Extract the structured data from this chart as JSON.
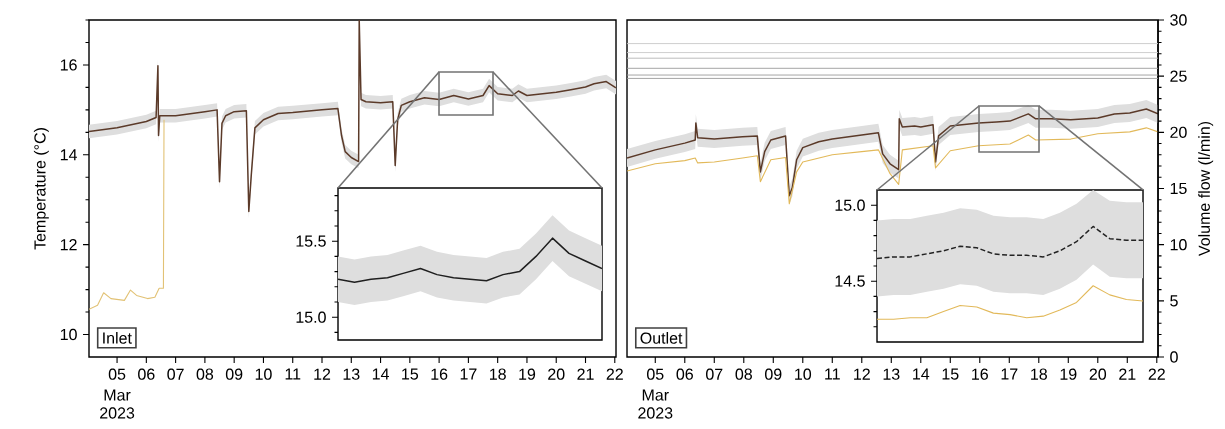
{
  "chart_data": [
    {
      "type": "line",
      "title": "Inlet",
      "ylabel": "Temperature (°C)",
      "annotations": [
        "Mar 2023"
      ],
      "xlim": [
        "2023-03-04T01:00",
        "2023-03-22T01:00"
      ],
      "ylim": [
        9.5,
        17
      ],
      "xticks": [
        {
          "value": "2023-03-05",
          "label": "05"
        },
        {
          "value": "2023-03-06",
          "label": "06"
        },
        {
          "value": "2023-03-07",
          "label": "07"
        },
        {
          "value": "2023-03-08",
          "label": "08"
        },
        {
          "value": "2023-03-09",
          "label": "09"
        },
        {
          "value": "2023-03-10",
          "label": "10"
        },
        {
          "value": "2023-03-11",
          "label": "11"
        },
        {
          "value": "2023-03-12",
          "label": "12"
        },
        {
          "value": "2023-03-13",
          "label": "13"
        },
        {
          "value": "2023-03-14",
          "label": "14"
        },
        {
          "value": "2023-03-15",
          "label": "15"
        },
        {
          "value": "2023-03-16",
          "label": "16"
        },
        {
          "value": "2023-03-17",
          "label": "17"
        },
        {
          "value": "2023-03-18",
          "label": "18"
        },
        {
          "value": "2023-03-19",
          "label": "19"
        },
        {
          "value": "2023-03-20",
          "label": "20"
        },
        {
          "value": "2023-03-21",
          "label": "21"
        },
        {
          "value": "2023-03-22",
          "label": "22"
        }
      ],
      "yticks": [
        10,
        {
          "value": 10.5,
          "label": null
        },
        {
          "value": 11,
          "label": null
        },
        {
          "value": 11.5,
          "label": null
        },
        12,
        {
          "value": 12.5,
          "label": null
        },
        {
          "value": 13,
          "label": null
        },
        {
          "value": 13.5,
          "label": null
        },
        14,
        {
          "value": 14.5,
          "label": null
        },
        {
          "value": 15,
          "label": null
        },
        {
          "value": 15.5,
          "label": null
        },
        16,
        {
          "value": 16.5,
          "label": null
        },
        {
          "value": 17,
          "label": null
        }
      ],
      "series": [
        {
          "color": "#5b3a29",
          "x": [
            "2023-03-04T01:00",
            "2023-03-05T00:00",
            "2023-03-06T00:00",
            "2023-03-06T08:00",
            "2023-03-06T09:30",
            "2023-03-06T10:00",
            "2023-03-06T11:00",
            "2023-03-07T00:00",
            "2023-03-08T00:00",
            "2023-03-08T10:00",
            "2023-03-08T12:00",
            "2023-03-08T14:00",
            "2023-03-08T17:00",
            "2023-03-09T00:00",
            "2023-03-09T10:00",
            "2023-03-09T12:00",
            "2023-03-09T14:00",
            "2023-03-09T17:00",
            "2023-03-10T00:00",
            "2023-03-10T12:00",
            "2023-03-11T00:00",
            "2023-03-12T00:00",
            "2023-03-12T13:00",
            "2023-03-12T16:00",
            "2023-03-12T19:00",
            "2023-03-13T00:00",
            "2023-03-13T06:00",
            "2023-03-13T06:30",
            "2023-03-13T08:00",
            "2023-03-13T12:00",
            "2023-03-14T00:00",
            "2023-03-14T10:00",
            "2023-03-14T12:00",
            "2023-03-14T14:00",
            "2023-03-14T17:00",
            "2023-03-15T00:00",
            "2023-03-15T12:00",
            "2023-03-16T00:00",
            "2023-03-16T12:00",
            "2023-03-17T00:00",
            "2023-03-17T12:00",
            "2023-03-17T17:00",
            "2023-03-18T00:00",
            "2023-03-18T12:00",
            "2023-03-18T17:00",
            "2023-03-19T00:00",
            "2023-03-20T00:00",
            "2023-03-20T12:00",
            "2023-03-21T00:00",
            "2023-03-21T07:00",
            "2023-03-21T17:00",
            "2023-03-22T01:00"
          ],
          "values": [
            14.52,
            14.6,
            14.74,
            14.83,
            15.98,
            14.43,
            14.87,
            14.87,
            14.96,
            15.0,
            13.4,
            14.7,
            14.87,
            14.96,
            14.98,
            12.74,
            13.54,
            14.6,
            14.78,
            14.92,
            14.94,
            15.0,
            15.03,
            14.43,
            14.07,
            13.94,
            13.85,
            17.0,
            15.23,
            15.18,
            15.16,
            15.18,
            13.76,
            14.78,
            15.1,
            15.18,
            15.27,
            15.23,
            15.32,
            15.24,
            15.32,
            15.54,
            15.36,
            15.32,
            15.42,
            15.32,
            15.39,
            15.45,
            15.51,
            15.58,
            15.63,
            15.49
          ],
          "lower": [
            14.37,
            14.45,
            14.59,
            14.68,
            15.83,
            14.28,
            14.72,
            14.72,
            14.81,
            14.85,
            13.25,
            14.55,
            14.72,
            14.81,
            14.83,
            12.59,
            13.39,
            14.45,
            14.63,
            14.77,
            14.79,
            14.85,
            14.88,
            14.28,
            13.92,
            13.79,
            13.7,
            16.85,
            15.08,
            15.03,
            15.01,
            15.03,
            13.61,
            14.63,
            14.95,
            15.03,
            15.12,
            15.08,
            15.17,
            15.09,
            15.17,
            15.39,
            15.21,
            15.17,
            15.27,
            15.17,
            15.24,
            15.3,
            15.36,
            15.43,
            15.48,
            15.34
          ],
          "upper": [
            14.67,
            14.75,
            14.89,
            14.98,
            16.13,
            14.58,
            15.02,
            15.02,
            15.11,
            15.15,
            13.55,
            14.85,
            15.02,
            15.11,
            15.13,
            12.89,
            13.69,
            14.75,
            14.93,
            15.07,
            15.09,
            15.15,
            15.18,
            14.58,
            14.22,
            14.09,
            14.0,
            17.0,
            15.38,
            15.33,
            15.31,
            15.33,
            13.91,
            14.93,
            15.25,
            15.33,
            15.42,
            15.38,
            15.47,
            15.39,
            15.47,
            15.69,
            15.51,
            15.47,
            15.57,
            15.47,
            15.54,
            15.6,
            15.66,
            15.73,
            15.78,
            15.64
          ]
        },
        {
          "color": "#e2c275",
          "x": [
            "2023-03-04T01:00",
            "2023-03-04T08:00",
            "2023-03-04T13:00",
            "2023-03-04T19:00",
            "2023-03-05T06:00",
            "2023-03-05T11:00",
            "2023-03-05T16:00",
            "2023-03-06T01:00",
            "2023-03-06T07:00",
            "2023-03-06T10:30",
            "2023-03-06T14:00",
            "2023-03-06T14:30"
          ],
          "values": [
            10.56,
            10.65,
            10.93,
            10.8,
            10.76,
            10.99,
            10.87,
            10.8,
            10.83,
            11.03,
            11.03,
            14.78
          ]
        }
      ]
    },
    {
      "type": "line",
      "tick_labels": "y",
      "categories": [
        null,
        null,
        null,
        null,
        null,
        null,
        null,
        null,
        null,
        null,
        null,
        null,
        null,
        null,
        null,
        null,
        null
      ],
      "ylim": [
        14.85,
        15.85
      ],
      "yticks": [
        {
          "value": 14.9,
          "label": null
        },
        {
          "value": 15.0,
          "label": "15.0"
        },
        {
          "value": 15.1,
          "label": null
        },
        {
          "value": 15.2,
          "label": null
        },
        {
          "value": 15.3,
          "label": null
        },
        {
          "value": 15.4,
          "label": null
        },
        {
          "value": 15.5,
          "label": "15.5"
        },
        {
          "value": 15.6,
          "label": null
        },
        {
          "value": 15.7,
          "label": null
        },
        {
          "value": 15.8,
          "label": null
        }
      ],
      "series": [
        {
          "color": "#1f1f1f",
          "values": [
            15.25,
            15.23,
            15.25,
            15.26,
            15.29,
            15.32,
            15.28,
            15.26,
            15.25,
            15.24,
            15.28,
            15.3,
            15.4,
            15.52,
            15.42,
            15.37,
            15.32
          ],
          "lower": [
            15.1,
            15.08,
            15.1,
            15.11,
            15.14,
            15.17,
            15.13,
            15.11,
            15.1,
            15.09,
            15.13,
            15.15,
            15.25,
            15.37,
            15.27,
            15.22,
            15.17
          ],
          "upper": [
            15.4,
            15.38,
            15.4,
            15.41,
            15.44,
            15.47,
            15.43,
            15.41,
            15.4,
            15.39,
            15.43,
            15.45,
            15.55,
            15.67,
            15.57,
            15.52,
            15.47
          ]
        }
      ]
    },
    {
      "type": "line",
      "title": "Outlet",
      "y2label": "Volume flow (l/min)",
      "annotations": [
        "Mar 2023"
      ],
      "xlim": [
        "2023-03-04T01:00",
        "2023-03-22T01:00"
      ],
      "ylim": [
        9.5,
        17
      ],
      "y2lim": [
        0,
        30
      ],
      "xticks": [
        {
          "value": "2023-03-05",
          "label": "05"
        },
        {
          "value": "2023-03-06",
          "label": "06"
        },
        {
          "value": "2023-03-07",
          "label": "07"
        },
        {
          "value": "2023-03-08",
          "label": "08"
        },
        {
          "value": "2023-03-09",
          "label": "09"
        },
        {
          "value": "2023-03-10",
          "label": "10"
        },
        {
          "value": "2023-03-11",
          "label": "11"
        },
        {
          "value": "2023-03-12",
          "label": "12"
        },
        {
          "value": "2023-03-13",
          "label": "13"
        },
        {
          "value": "2023-03-14",
          "label": "14"
        },
        {
          "value": "2023-03-15",
          "label": "15"
        },
        {
          "value": "2023-03-16",
          "label": "16"
        },
        {
          "value": "2023-03-17",
          "label": "17"
        },
        {
          "value": "2023-03-18",
          "label": "18"
        },
        {
          "value": "2023-03-19",
          "label": "19"
        },
        {
          "value": "2023-03-20",
          "label": "20"
        },
        {
          "value": "2023-03-21",
          "label": "21"
        },
        {
          "value": "2023-03-22",
          "label": "22"
        }
      ],
      "y2ticks": [
        0,
        {
          "value": 1,
          "label": null
        },
        {
          "value": 2,
          "label": null
        },
        {
          "value": 3,
          "label": null
        },
        {
          "value": 4,
          "label": null
        },
        5,
        {
          "value": 6,
          "label": null
        },
        {
          "value": 7,
          "label": null
        },
        {
          "value": 8,
          "label": null
        },
        {
          "value": 9,
          "label": null
        },
        10,
        {
          "value": 11,
          "label": null
        },
        {
          "value": 12,
          "label": null
        },
        {
          "value": 13,
          "label": null
        },
        {
          "value": 14,
          "label": null
        },
        15,
        {
          "value": 16,
          "label": null
        },
        {
          "value": 17,
          "label": null
        },
        {
          "value": 18,
          "label": null
        },
        {
          "value": 19,
          "label": null
        },
        20,
        {
          "value": 21,
          "label": null
        },
        {
          "value": 22,
          "label": null
        },
        {
          "value": 23,
          "label": null
        },
        {
          "value": 24,
          "label": null
        },
        25,
        {
          "value": 26,
          "label": null
        },
        {
          "value": 27,
          "label": null
        },
        {
          "value": 28,
          "label": null
        },
        {
          "value": 29,
          "label": null
        },
        30
      ],
      "series": [
        {
          "color": "#5b3a29",
          "x": [
            "2023-03-04T01:00",
            "2023-03-05T00:00",
            "2023-03-06T00:00",
            "2023-03-06T08:30",
            "2023-03-06T09:00",
            "2023-03-06T10:30",
            "2023-03-07T00:00",
            "2023-03-07T23:00",
            "2023-03-08T11:00",
            "2023-03-08T13:30",
            "2023-03-08T17:00",
            "2023-03-08T22:00",
            "2023-03-09T10:00",
            "2023-03-09T13:00",
            "2023-03-09T15:30",
            "2023-03-09T19:00",
            "2023-03-10T00:00",
            "2023-03-10T13:00",
            "2023-03-11T00:00",
            "2023-03-12T00:00",
            "2023-03-12T13:30",
            "2023-03-12T17:00",
            "2023-03-12T23:00",
            "2023-03-13T06:00",
            "2023-03-13T06:30",
            "2023-03-13T09:00",
            "2023-03-13T19:00",
            "2023-03-14T00:00",
            "2023-03-14T10:00",
            "2023-03-14T12:00",
            "2023-03-14T14:30",
            "2023-03-15T00:00",
            "2023-03-15T23:00",
            "2023-03-16T13:30",
            "2023-03-17T00:30",
            "2023-03-17T15:30",
            "2023-03-17T21:30",
            "2023-03-18T10:00",
            "2023-03-19T02:00",
            "2023-03-20T00:00",
            "2023-03-20T13:30",
            "2023-03-21T02:00",
            "2023-03-21T15:30",
            "2023-03-22T01:00"
          ],
          "values": [
            13.93,
            14.11,
            14.26,
            14.33,
            14.71,
            14.38,
            14.35,
            14.4,
            14.42,
            13.62,
            14.07,
            14.33,
            14.42,
            13.09,
            13.27,
            13.89,
            14.16,
            14.29,
            14.35,
            14.44,
            14.49,
            14.02,
            13.8,
            13.67,
            14.8,
            14.62,
            14.64,
            14.62,
            14.67,
            13.84,
            14.42,
            14.64,
            14.71,
            14.73,
            14.75,
            14.91,
            14.8,
            14.8,
            14.78,
            14.82,
            14.91,
            14.93,
            15.02,
            14.91
          ],
          "lower": [
            13.73,
            13.91,
            14.06,
            14.13,
            14.51,
            14.18,
            14.15,
            14.2,
            14.22,
            13.42,
            13.87,
            14.13,
            14.22,
            12.89,
            13.07,
            13.69,
            13.96,
            14.09,
            14.15,
            14.24,
            14.29,
            13.82,
            13.6,
            13.47,
            14.6,
            14.42,
            14.44,
            14.42,
            14.47,
            13.64,
            14.22,
            14.44,
            14.51,
            14.53,
            14.55,
            14.71,
            14.6,
            14.6,
            14.58,
            14.62,
            14.71,
            14.73,
            14.82,
            14.71
          ],
          "upper": [
            14.13,
            14.31,
            14.46,
            14.53,
            14.91,
            14.58,
            14.55,
            14.6,
            14.62,
            13.82,
            14.27,
            14.53,
            14.62,
            13.29,
            13.47,
            14.09,
            14.36,
            14.49,
            14.55,
            14.64,
            14.69,
            14.22,
            14.0,
            13.87,
            15.0,
            14.82,
            14.84,
            14.82,
            14.87,
            14.04,
            14.62,
            14.84,
            14.91,
            14.93,
            14.95,
            15.11,
            15.0,
            15.0,
            14.98,
            15.02,
            15.11,
            15.13,
            15.22,
            15.11
          ]
        },
        {
          "color": "#e2b95a",
          "x": [
            "2023-03-04T01:00",
            "2023-03-05T00:00",
            "2023-03-06T00:00",
            "2023-03-06T08:30",
            "2023-03-06T10:30",
            "2023-03-07T00:00",
            "2023-03-07T23:00",
            "2023-03-08T11:00",
            "2023-03-08T13:30",
            "2023-03-08T22:00",
            "2023-03-09T10:00",
            "2023-03-09T13:00",
            "2023-03-09T19:00",
            "2023-03-10T00:00",
            "2023-03-11T00:00",
            "2023-03-12T00:00",
            "2023-03-12T13:30",
            "2023-03-12T23:00",
            "2023-03-13T06:00",
            "2023-03-13T09:00",
            "2023-03-14T10:00",
            "2023-03-14T12:00",
            "2023-03-15T00:00",
            "2023-03-15T23:00",
            "2023-03-17T00:30",
            "2023-03-17T15:30",
            "2023-03-17T21:30",
            "2023-03-19T02:00",
            "2023-03-20T00:00",
            "2023-03-21T02:00",
            "2023-03-21T15:30",
            "2023-03-22T01:00"
          ],
          "values": [
            13.64,
            13.8,
            13.87,
            13.93,
            13.82,
            13.84,
            13.93,
            13.98,
            13.4,
            13.89,
            13.94,
            12.91,
            13.62,
            13.84,
            14.0,
            14.07,
            14.11,
            13.58,
            13.34,
            14.11,
            14.2,
            13.71,
            14.09,
            14.2,
            14.24,
            14.44,
            14.33,
            14.35,
            14.47,
            14.51,
            14.6,
            14.51
          ]
        },
        {
          "color": "#c9c9c9",
          "axis": "y2",
          "x": [
            "2023-03-04T01:00",
            "2023-03-22T01:00"
          ],
          "values": [
            27.9,
            27.9
          ]
        },
        {
          "color": "#c9c9c9",
          "axis": "y2",
          "x": [
            "2023-03-04T01:00",
            "2023-03-22T01:00"
          ],
          "values": [
            27.1,
            27.1
          ]
        },
        {
          "color": "#b5b5b5",
          "axis": "y2",
          "x": [
            "2023-03-04T01:00",
            "2023-03-22T01:00"
          ],
          "values": [
            26.6,
            26.6
          ]
        },
        {
          "color": "#9b9b9b",
          "axis": "y2",
          "x": [
            "2023-03-04T01:00",
            "2023-03-22T01:00"
          ],
          "values": [
            25.7,
            25.7
          ]
        },
        {
          "color": "#9b9b9b",
          "axis": "y2",
          "x": [
            "2023-03-04T01:00",
            "2023-03-22T01:00"
          ],
          "values": [
            25.1,
            25.1
          ]
        },
        {
          "color": "#9b9b9b",
          "axis": "y2",
          "x": [
            "2023-03-04T01:00",
            "2023-03-22T01:00"
          ],
          "values": [
            24.8,
            24.8
          ]
        }
      ]
    },
    {
      "type": "line",
      "tick_labels": "y",
      "categories": [
        null,
        null,
        null,
        null,
        null,
        null,
        null,
        null,
        null,
        null,
        null,
        null,
        null,
        null,
        null,
        null,
        null
      ],
      "ylim": [
        14.1,
        15.1
      ],
      "yticks": [
        {
          "value": 14.2,
          "label": null
        },
        {
          "value": 14.3,
          "label": null
        },
        {
          "value": 14.4,
          "label": null
        },
        {
          "value": 14.5,
          "label": "14.5"
        },
        {
          "value": 14.6,
          "label": null
        },
        {
          "value": 14.7,
          "label": null
        },
        {
          "value": 14.8,
          "label": null
        },
        {
          "value": 14.9,
          "label": null
        },
        {
          "value": 15.0,
          "label": "15.0"
        }
      ],
      "series": [
        {
          "color": "#222222",
          "line_style": "dashed",
          "values": [
            14.65,
            14.66,
            14.66,
            14.68,
            14.7,
            14.73,
            14.72,
            14.68,
            14.67,
            14.67,
            14.66,
            14.7,
            14.76,
            14.86,
            14.78,
            14.77,
            14.77
          ],
          "lower": [
            14.4,
            14.41,
            14.41,
            14.43,
            14.45,
            14.48,
            14.47,
            14.43,
            14.42,
            14.42,
            14.41,
            14.45,
            14.51,
            14.61,
            14.53,
            14.52,
            14.52
          ],
          "upper": [
            14.9,
            14.91,
            14.91,
            14.93,
            14.95,
            14.98,
            14.97,
            14.93,
            14.92,
            14.92,
            14.91,
            14.95,
            15.01,
            15.1,
            15.03,
            15.02,
            15.02
          ]
        },
        {
          "color": "#e2b95a",
          "values": [
            14.25,
            14.25,
            14.26,
            14.26,
            14.3,
            14.34,
            14.33,
            14.29,
            14.28,
            14.26,
            14.27,
            14.31,
            14.36,
            14.47,
            14.41,
            14.38,
            14.37
          ]
        }
      ]
    }
  ]
}
